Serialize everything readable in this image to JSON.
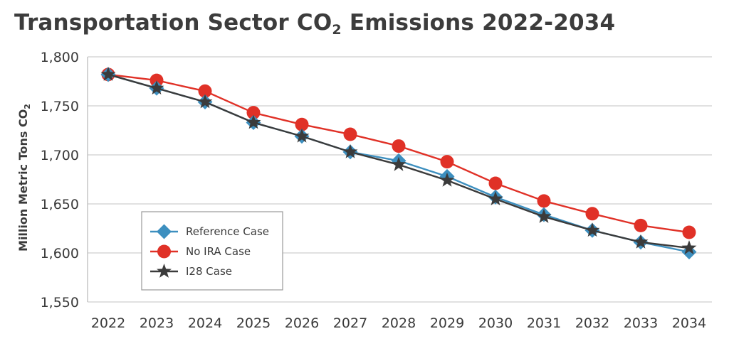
{
  "chart_data": {
    "type": "line",
    "title_main": "Transportation Sector CO",
    "title_sub": "2",
    "title_rest": " Emissions 2022-2034",
    "ylabel_main": "Million Metric Tons CO",
    "ylabel_sub": "2",
    "xlabel": "",
    "ylim": [
      1550,
      1800
    ],
    "yticks": [
      "1,550",
      "1,600",
      "1,650",
      "1,700",
      "1,750",
      "1,800"
    ],
    "ytick_values": [
      1550,
      1600,
      1650,
      1700,
      1750,
      1800
    ],
    "grid": true,
    "legend_position": "bottom-left",
    "x": [
      "2022",
      "2023",
      "2024",
      "2025",
      "2026",
      "2027",
      "2028",
      "2029",
      "2030",
      "2031",
      "2032",
      "2033",
      "2034"
    ],
    "series": [
      {
        "name": "Reference Case",
        "color": "#3d8fbf",
        "marker": "diamond",
        "values": [
          1782,
          1768,
          1754,
          1733,
          1719,
          1703,
          1694,
          1678,
          1657,
          1639,
          1623,
          1611,
          1601
        ]
      },
      {
        "name": "No IRA Case",
        "color": "#e03127",
        "marker": "circle",
        "values": [
          1782,
          1776,
          1765,
          1743,
          1731,
          1721,
          1709,
          1693,
          1671,
          1653,
          1640,
          1628,
          1621
        ]
      },
      {
        "name": "I28 Case",
        "color": "#3b3b3b",
        "marker": "star",
        "values": [
          1782,
          1768,
          1754,
          1733,
          1719,
          1703,
          1690,
          1674,
          1655,
          1637,
          1623,
          1611,
          1605
        ]
      }
    ]
  }
}
